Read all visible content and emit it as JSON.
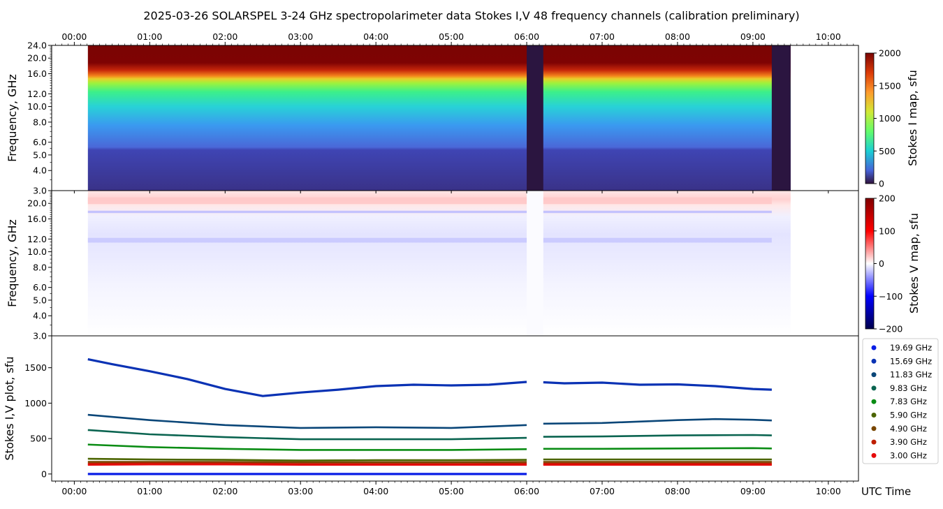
{
  "title": "2025-03-26  SOLARSPEL  3-24 GHz spectropolarimeter data   Stokes I,V   48 frequency channels   (calibration preliminary)",
  "time_ticks": [
    "00:00",
    "01:00",
    "02:00",
    "03:00",
    "04:00",
    "05:00",
    "06:00",
    "07:00",
    "08:00",
    "09:00",
    "10:00"
  ],
  "xlabel": "UTC Time",
  "chart_data": [
    {
      "type": "heatmap",
      "name": "Stokes I map",
      "ylabel": "Frequency, GHz",
      "y_ticks": [
        "3.0",
        "4.0",
        "5.0",
        "6.0",
        "8.0",
        "10.0",
        "12.0",
        "16.0",
        "20.0",
        "24.0"
      ],
      "y_tick_values": [
        3,
        4,
        5,
        6,
        8,
        10,
        12,
        16,
        20,
        24
      ],
      "ylim": [
        3,
        24
      ],
      "y_scale": "log",
      "xlim_hours": [
        -0.3,
        10.4
      ],
      "data_time_range_hours": [
        0.18,
        9.5
      ],
      "gaps_hours": [
        [
          6.0,
          6.22
        ],
        [
          9.25,
          9.5
        ]
      ],
      "colorbar_label": "Stokes I map, sfu",
      "colorbar_ticks": [
        "0",
        "500",
        "1000",
        "1500",
        "2000"
      ],
      "colorbar_range": [
        0,
        2000
      ],
      "colormap": "turbo"
    },
    {
      "type": "heatmap",
      "name": "Stokes V map",
      "ylabel": "Frequency, GHz",
      "y_ticks": [
        "3.0",
        "4.0",
        "5.0",
        "6.0",
        "8.0",
        "10.0",
        "12.0",
        "16.0",
        "20.0"
      ],
      "y_tick_values": [
        3,
        4,
        5,
        6,
        8,
        10,
        12,
        16,
        20
      ],
      "ylim": [
        3,
        24
      ],
      "y_scale": "log",
      "colorbar_label": "Stokes V map, sfu",
      "colorbar_ticks": [
        "−200",
        "−100",
        "0",
        "100",
        "200"
      ],
      "colorbar_range": [
        -200,
        200
      ],
      "colormap": "seismic"
    },
    {
      "type": "line",
      "name": "Stokes I,V plot",
      "ylabel": "Stokes I,V plot, sfu",
      "y_ticks": [
        "0",
        "500",
        "1000",
        "1500"
      ],
      "y_tick_values": [
        0,
        500,
        1000,
        1500
      ],
      "ylim": [
        -100,
        1950
      ],
      "legend_position": "right",
      "series": [
        {
          "name": "19.69 GHz",
          "color": "#0a1ee6",
          "t": [
            0.18,
            1,
            2,
            3,
            4,
            5,
            6
          ],
          "values": [
            0,
            0,
            0,
            0,
            0,
            0,
            0
          ]
        },
        {
          "name": "15.69 GHz",
          "color": "#0a32b4",
          "t": [
            0.18,
            0.5,
            1,
            1.5,
            2,
            2.5,
            3,
            3.5,
            4,
            4.5,
            5,
            5.5,
            6,
            6.22,
            6.5,
            7,
            7.5,
            8,
            8.5,
            9,
            9.25
          ],
          "values": [
            1620,
            1550,
            1450,
            1340,
            1200,
            1100,
            1150,
            1190,
            1240,
            1260,
            1250,
            1260,
            1300,
            1295,
            1280,
            1290,
            1260,
            1265,
            1240,
            1200,
            1190
          ]
        },
        {
          "name": "11.83 GHz",
          "color": "#0a4678",
          "t": [
            0.18,
            1,
            2,
            3,
            4,
            5,
            6,
            6.22,
            7,
            8,
            8.5,
            9,
            9.25
          ],
          "values": [
            835,
            760,
            690,
            650,
            660,
            650,
            690,
            710,
            720,
            760,
            775,
            765,
            755
          ]
        },
        {
          "name": "9.83 GHz",
          "color": "#0a6450",
          "t": [
            0.18,
            1,
            2,
            3,
            4,
            5,
            6,
            6.22,
            7,
            8,
            9,
            9.25
          ],
          "values": [
            620,
            560,
            520,
            490,
            490,
            490,
            510,
            525,
            530,
            545,
            550,
            545
          ]
        },
        {
          "name": "7.83 GHz",
          "color": "#0a8c14",
          "t": [
            0.18,
            1,
            2,
            3,
            4,
            5,
            6,
            6.22,
            7,
            8,
            9,
            9.25
          ],
          "values": [
            415,
            380,
            355,
            340,
            340,
            340,
            350,
            355,
            355,
            360,
            365,
            360
          ]
        },
        {
          "name": "5.90 GHz",
          "color": "#4b6400",
          "t": [
            0.18,
            1,
            2,
            3,
            4,
            5,
            6,
            6.22,
            7,
            8,
            9,
            9.25
          ],
          "values": [
            215,
            205,
            200,
            190,
            195,
            195,
            200,
            205,
            205,
            205,
            205,
            205
          ]
        },
        {
          "name": "4.90 GHz",
          "color": "#784600",
          "t": [
            0.18,
            1,
            2,
            3,
            4,
            5,
            6,
            6.22,
            7,
            8,
            9,
            9.25
          ],
          "values": [
            170,
            170,
            170,
            165,
            165,
            165,
            170,
            170,
            170,
            170,
            170,
            170
          ]
        },
        {
          "name": "3.90 GHz",
          "color": "#be1e00",
          "t": [
            0.18,
            1,
            2,
            3,
            4,
            5,
            6,
            6.22,
            7,
            8,
            9,
            9.25
          ],
          "values": [
            145,
            150,
            150,
            140,
            140,
            140,
            145,
            145,
            145,
            145,
            145,
            145
          ]
        },
        {
          "name": "3.00 GHz",
          "color": "#e60a0a",
          "t": [
            0.18,
            1,
            2,
            3,
            4,
            5,
            6,
            6.22,
            7,
            8,
            9,
            9.25
          ],
          "values": [
            130,
            135,
            135,
            130,
            130,
            130,
            130,
            130,
            130,
            130,
            130,
            130
          ]
        }
      ]
    }
  ]
}
